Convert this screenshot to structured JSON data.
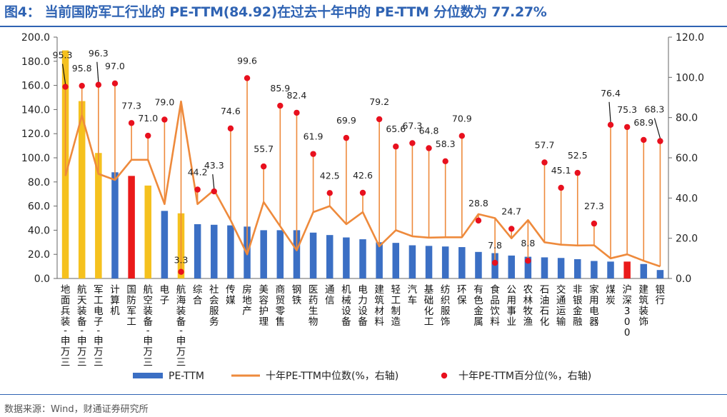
{
  "title": "图4： 当前国防军工行业的 PE-TTM(84.92)在过去十年中的 PE-TTM 分位数为 77.27%",
  "source": "数据来源：Wind，财通证券研究所",
  "colors": {
    "bar_default": "#3b6fc4",
    "bar_highlight_yellow": "#f5c11e",
    "bar_highlight_red": "#ea1a1a",
    "median_line": "#ee8a3c",
    "percentile_dot": "#e8101e",
    "title": "#2f63b3"
  },
  "chart_data": {
    "type": "bar",
    "categories": [
      "地面兵装-申万三",
      "航天装备-申万三",
      "军工电子-申万三",
      "计算机",
      "国防军工",
      "航空装备-申万三",
      "电子",
      "航海装备-申万三",
      "综合",
      "社会服务",
      "传媒",
      "房地产",
      "美容护理",
      "商贸零售",
      "钢铁",
      "医药生物",
      "通信",
      "机械设备",
      "电力设备",
      "建筑材料",
      "轻工制造",
      "汽车",
      "基础化工",
      "纺织服饰",
      "环保",
      "有色金属",
      "食品饮料",
      "公用事业",
      "农林牧渔",
      "石油石化",
      "交通运输",
      "非银金融",
      "家用电器",
      "煤炭",
      "沪深300",
      "建筑装饰",
      "银行"
    ],
    "bar_colors": [
      "yellow",
      "yellow",
      "yellow",
      "blue",
      "red",
      "yellow",
      "blue",
      "yellow",
      "blue",
      "blue",
      "blue",
      "blue",
      "blue",
      "blue",
      "blue",
      "blue",
      "blue",
      "blue",
      "blue",
      "blue",
      "blue",
      "blue",
      "blue",
      "blue",
      "blue",
      "blue",
      "blue",
      "blue",
      "blue",
      "blue",
      "blue",
      "blue",
      "blue",
      "blue",
      "red",
      "blue",
      "blue"
    ],
    "series": [
      {
        "name": "PE-TTM",
        "type": "bar",
        "axis": "left",
        "values": [
          189,
          147,
          104,
          88,
          85,
          77,
          56,
          54,
          45,
          44.5,
          44,
          43,
          40,
          40,
          40,
          38,
          36,
          34,
          32.5,
          30,
          29.5,
          27.5,
          27,
          26.5,
          26,
          22,
          21,
          19,
          18,
          17.5,
          17,
          16,
          14.5,
          14,
          14,
          12,
          7
        ]
      },
      {
        "name": "十年PE-TTM中位数(%，右轴)",
        "type": "line",
        "axis": "right",
        "values": [
          51,
          81,
          52,
          49,
          59,
          59,
          37,
          88,
          37,
          44,
          29,
          12,
          38,
          26,
          14,
          33,
          36,
          27,
          33,
          16,
          24,
          21,
          20.3,
          20.5,
          20.5,
          32,
          30,
          20,
          29,
          18,
          16.8,
          16.4,
          16.5,
          10,
          12,
          8.8,
          6
        ]
      },
      {
        "name": "十年PE-TTM百分位(%，右轴)",
        "type": "scatter",
        "axis": "right",
        "values": [
          95.3,
          95.8,
          96.3,
          97.0,
          77.3,
          71.0,
          79.0,
          3.3,
          44.2,
          43.3,
          74.6,
          99.6,
          55.7,
          85.9,
          82.4,
          61.9,
          42.5,
          69.9,
          42.6,
          79.2,
          65.6,
          67.3,
          64.8,
          58.3,
          70.9,
          28.8,
          7.8,
          24.7,
          8.8,
          57.7,
          45.1,
          52.5,
          27.3,
          76.4,
          75.3,
          68.9,
          68.3
        ]
      }
    ],
    "ylim_left": [
      0,
      200
    ],
    "ylim_right": [
      0,
      120
    ],
    "yticks_left": [
      "0.0",
      "20.0",
      "40.0",
      "60.0",
      "80.0",
      "100.0",
      "120.0",
      "140.0",
      "160.0",
      "180.0",
      "200.0"
    ],
    "yticks_right": [
      "0.0",
      "20.0",
      "40.0",
      "60.0",
      "80.0",
      "100.0",
      "120.0"
    ],
    "legend_position": "bottom",
    "legend": [
      "PE-TTM",
      "十年PE-TTM中位数(%，右轴)",
      "十年PE-TTM百分位(%，右轴)"
    ]
  }
}
